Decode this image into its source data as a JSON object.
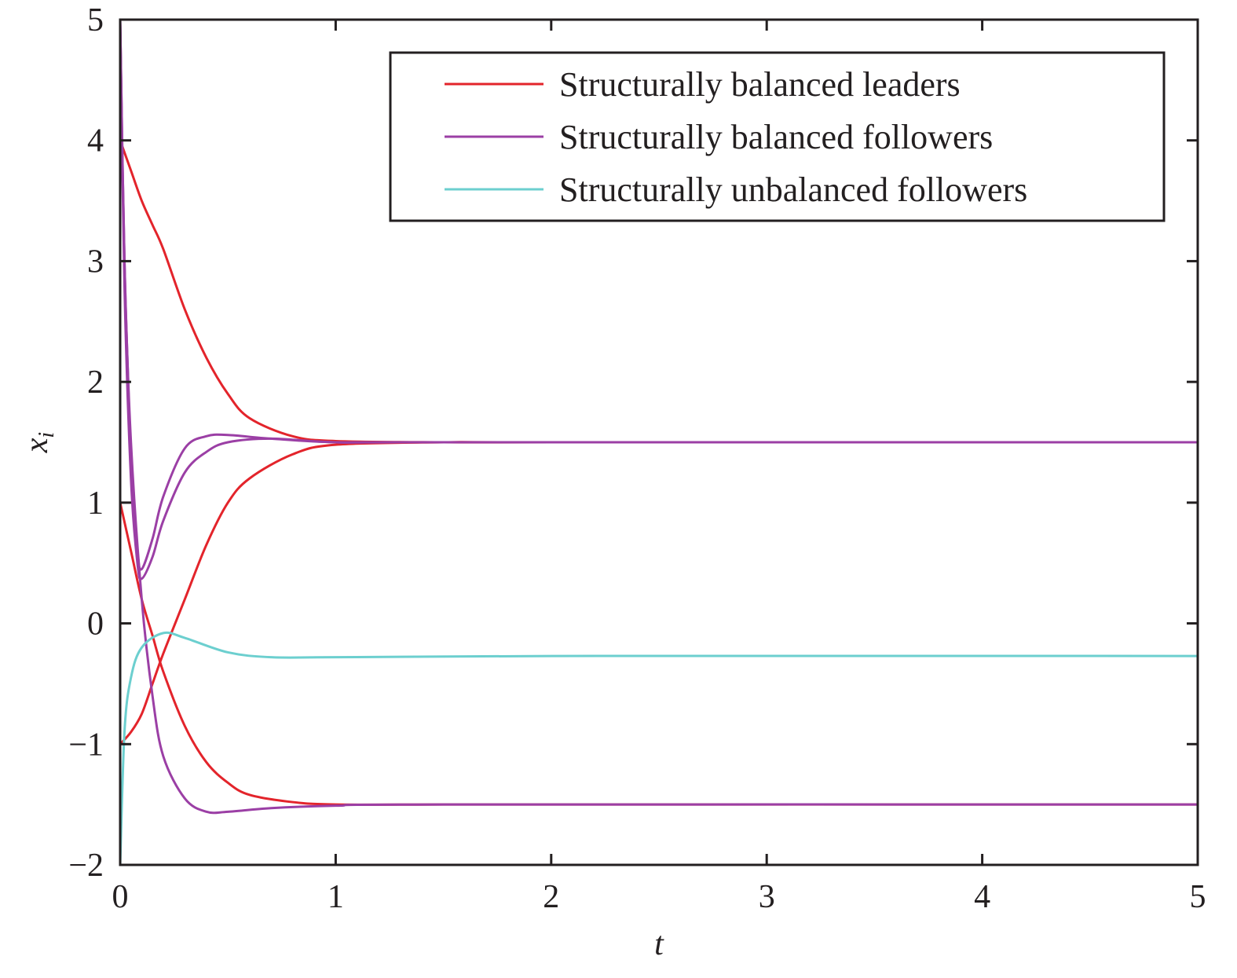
{
  "chart_data": {
    "type": "line",
    "title": "",
    "xlabel": "t",
    "ylabel": "x_i",
    "xlim": [
      0,
      5
    ],
    "ylim": [
      -2,
      5
    ],
    "xticks": [
      "0",
      "1",
      "2",
      "3",
      "4",
      "5"
    ],
    "xtick_values": [
      0,
      1,
      2,
      3,
      4,
      5
    ],
    "yticks": [
      "−2",
      "−1",
      "0",
      "1",
      "2",
      "3",
      "4",
      "5"
    ],
    "ytick_values": [
      -2,
      -1,
      0,
      1,
      2,
      3,
      4,
      5
    ],
    "grid": false,
    "legend_position": "top-right",
    "legend": [
      {
        "label": "Structurally balanced leaders",
        "color": "#e3242b"
      },
      {
        "label": "Structurally balanced followers",
        "color": "#9b3fa5"
      },
      {
        "label": "Structurally unbalanced followers",
        "color": "#6ccfcf"
      }
    ],
    "series": [
      {
        "name": "Structurally balanced leaders",
        "color": "#e3242b",
        "x": [
          0,
          0.05,
          0.1,
          0.15,
          0.2,
          0.3,
          0.4,
          0.5,
          0.6,
          0.8,
          1,
          1.5,
          2,
          5
        ],
        "y": [
          4,
          3.75,
          3.5,
          3.3,
          3.1,
          2.6,
          2.2,
          1.9,
          1.7,
          1.55,
          1.51,
          1.5,
          1.5,
          1.5
        ]
      },
      {
        "name": "Structurally balanced leaders",
        "color": "#e3242b",
        "x": [
          0,
          0.05,
          0.1,
          0.15,
          0.2,
          0.3,
          0.4,
          0.5,
          0.6,
          0.8,
          1,
          1.5,
          2,
          5
        ],
        "y": [
          1,
          0.6,
          0.2,
          -0.1,
          -0.4,
          -0.85,
          -1.15,
          -1.32,
          -1.42,
          -1.48,
          -1.5,
          -1.5,
          -1.5,
          -1.5
        ]
      },
      {
        "name": "Structurally balanced leaders",
        "color": "#e3242b",
        "x": [
          0,
          0.05,
          0.1,
          0.15,
          0.2,
          0.3,
          0.4,
          0.5,
          0.6,
          0.8,
          1,
          1.5,
          2,
          5
        ],
        "y": [
          -1,
          -0.9,
          -0.75,
          -0.5,
          -0.25,
          0.2,
          0.65,
          1.0,
          1.2,
          1.4,
          1.48,
          1.5,
          1.5,
          1.5
        ]
      },
      {
        "name": "Structurally balanced followers",
        "color": "#9b3fa5",
        "x": [
          0,
          0.02,
          0.05,
          0.08,
          0.1,
          0.15,
          0.2,
          0.3,
          0.4,
          0.5,
          0.7,
          1,
          1.5,
          5
        ],
        "y": [
          5,
          3,
          1.3,
          0.6,
          0.45,
          0.7,
          1.05,
          1.45,
          1.55,
          1.56,
          1.53,
          1.5,
          1.5,
          1.5
        ]
      },
      {
        "name": "Structurally balanced followers",
        "color": "#9b3fa5",
        "x": [
          0,
          0.02,
          0.05,
          0.08,
          0.1,
          0.15,
          0.2,
          0.3,
          0.4,
          0.5,
          0.7,
          1,
          1.5,
          5
        ],
        "y": [
          5,
          2.8,
          1.2,
          0.5,
          0.37,
          0.55,
          0.85,
          1.25,
          1.42,
          1.5,
          1.53,
          1.5,
          1.5,
          1.5
        ]
      },
      {
        "name": "Structurally balanced followers",
        "color": "#9b3fa5",
        "x": [
          0,
          0.02,
          0.05,
          0.1,
          0.15,
          0.2,
          0.3,
          0.4,
          0.5,
          0.7,
          1,
          1.5,
          5
        ],
        "y": [
          5,
          3,
          1.5,
          0.2,
          -0.6,
          -1.1,
          -1.45,
          -1.56,
          -1.56,
          -1.53,
          -1.51,
          -1.5,
          -1.5
        ]
      },
      {
        "name": "Structurally unbalanced followers",
        "color": "#6ccfcf",
        "x": [
          0,
          0.02,
          0.05,
          0.1,
          0.2,
          0.3,
          0.5,
          0.7,
          1,
          2,
          5
        ],
        "y": [
          -2,
          -0.9,
          -0.45,
          -0.2,
          -0.08,
          -0.12,
          -0.24,
          -0.28,
          -0.28,
          -0.27,
          -0.27
        ]
      }
    ]
  }
}
